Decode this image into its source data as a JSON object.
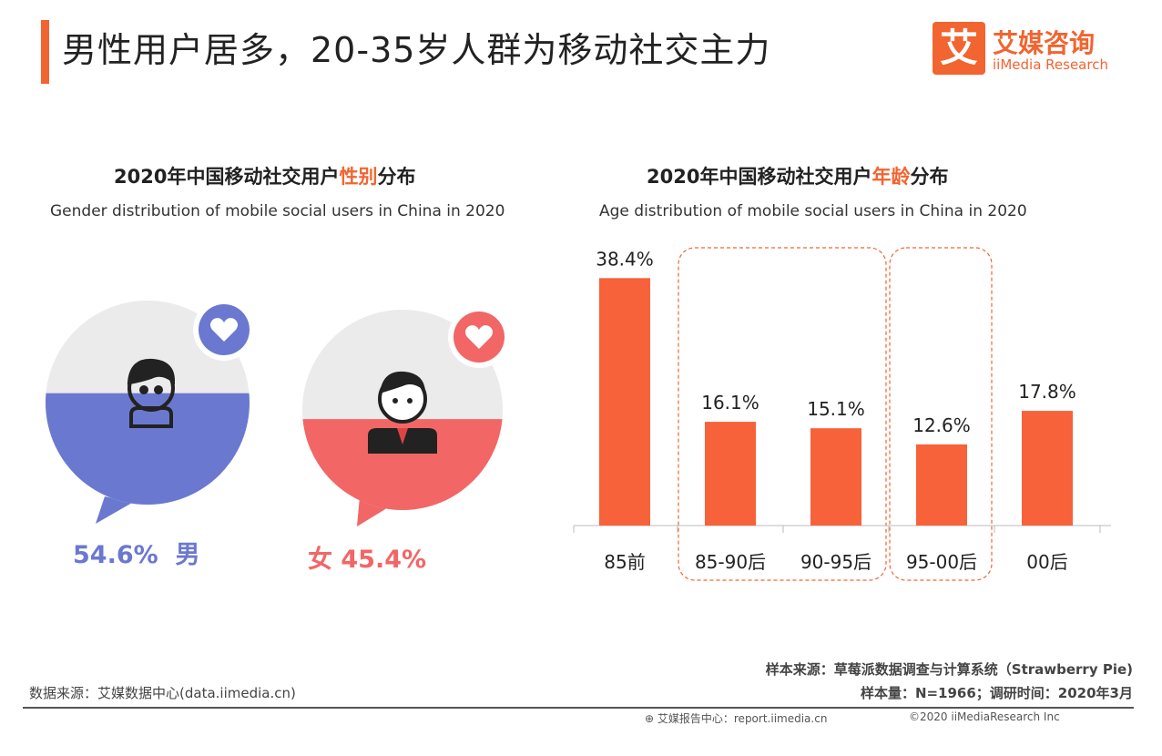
{
  "header": {
    "title": "男性用户居多，20-35岁人群为移动社交主力",
    "logo_icon_char": "艾",
    "logo_cn": "艾媒咨询",
    "logo_en": "iiMedia Research"
  },
  "gender_panel": {
    "title_prefix": "2020年中国移动社交用户",
    "title_highlight": "性别",
    "title_suffix": "分布",
    "subtitle": "Gender distribution of mobile social users in China in 2020",
    "male": {
      "label": "54.6%  男",
      "value": 54.6,
      "color": "#6b78d0"
    },
    "female": {
      "label": "女 45.4%",
      "value": 45.4,
      "color": "#f26666"
    }
  },
  "age_panel": {
    "title_prefix": "2020年中国移动社交用户",
    "title_highlight": "年龄",
    "title_suffix": "分布",
    "subtitle": "Age distribution of mobile social users in China in 2020"
  },
  "chart_data": [
    {
      "type": "pie",
      "title": "2020年中国移动社交用户性别分布",
      "subtitle": "Gender distribution of mobile social users in China in 2020",
      "categories": [
        "男",
        "女"
      ],
      "values": [
        54.6,
        45.4
      ],
      "colors": [
        "#6b78d0",
        "#f26666"
      ]
    },
    {
      "type": "bar",
      "title": "2020年中国移动社交用户年龄分布",
      "subtitle": "Age distribution of mobile social users in China in 2020",
      "categories": [
        "85前",
        "85-90后",
        "90-95后",
        "95-00后",
        "00后"
      ],
      "values": [
        38.4,
        16.1,
        15.1,
        12.6,
        17.8
      ],
      "data_labels": [
        "38.4%",
        "16.1%",
        "15.1%",
        "12.6%",
        "17.8%"
      ],
      "ylim": [
        0,
        40
      ],
      "bar_color": "#f7623a",
      "highlight_groups": [
        [
          1,
          2
        ],
        [
          3
        ]
      ],
      "grid": false
    }
  ],
  "footer": {
    "data_source": "数据来源：艾媒数据中心(data.iimedia.cn)",
    "sample_source": "样本来源：草莓派数据调查与计算系统（Strawberry Pie)",
    "sample_size": "样本量：N=1966；调研时间：2020年3月",
    "report_center": "艾媒报告中心：report.iimedia.cn",
    "copyright": "©2020  iiMediaResearch  Inc"
  }
}
